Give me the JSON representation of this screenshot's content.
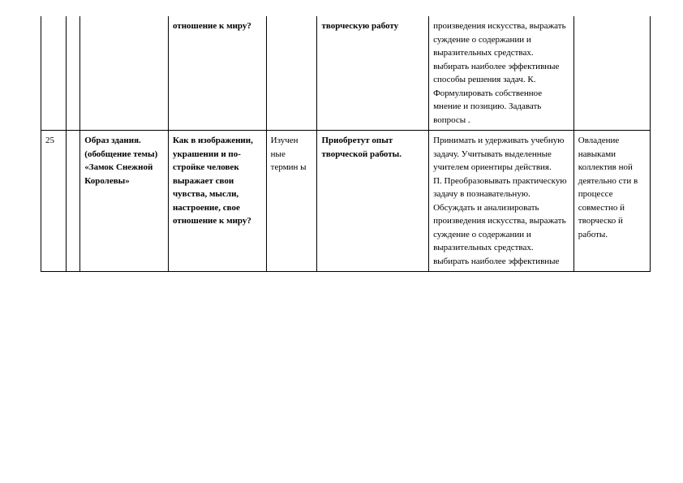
{
  "table": {
    "row1": {
      "num": "",
      "sub": "",
      "topic": "",
      "question": "отношение к миру?",
      "terms": "",
      "result": "творческую работу",
      "uud": "произведения искусства, выражать суждение о содержании и выразительных средствах.  выбирать наиболее эффективные способы решения задач.                     К. Формулировать собственное мнение и позицию. Задавать вопросы .",
      "mastery": ""
    },
    "row2": {
      "num": "25",
      "sub": "",
      "topic": "Образ здания. (обобщение темы) «Замок Снежной Королевы»",
      "question": "Как в изображении, украшении и по­стройке человек выражает свои чувства, мысли, настроение, свое отношение к миру?",
      "terms": "Изучен ные термин ы",
      "result": "Приобретут опыт творческой работы.",
      "uud": "Принимать и удерживать учебную задачу. Учитывать выделенные учителем ориентиры действия.\nП. Преобразовывать практическую задачу в познавательную. Обсуждать и анализировать произведения искусства, выражать суждение о содержании и выразительных средствах.  выбирать наиболее эффективные",
      "mastery": "Овладение навыками коллектив ной деятельно сти в процессе совместно й творческо й работы."
    }
  }
}
